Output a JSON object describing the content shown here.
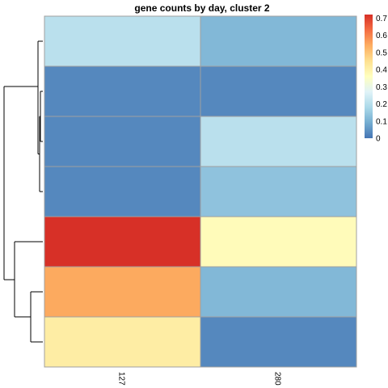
{
  "chart_data": {
    "type": "heatmap",
    "title": "gene counts by day, cluster 2",
    "columns": [
      "127",
      "280"
    ],
    "row_count": 7,
    "values": [
      [
        0.2,
        0.11
      ],
      [
        0.03,
        0.03
      ],
      [
        0.03,
        0.2
      ],
      [
        0.03,
        0.13
      ],
      [
        0.72,
        0.36
      ],
      [
        0.53,
        0.11
      ],
      [
        0.4,
        0.03
      ]
    ],
    "color_scale": {
      "min": 0,
      "max": 0.7,
      "colors": [
        "#4575b4",
        "#74add1",
        "#abd9e9",
        "#e0f3f8",
        "#ffffbf",
        "#fee090",
        "#fdae61",
        "#f46d43",
        "#d73027"
      ],
      "ticks": [
        "0",
        "0.1",
        "0.2",
        "0.3",
        "0.4",
        "0.5",
        "0.6",
        "0.7"
      ]
    },
    "row_dendrogram": true,
    "grid_color": "#a0a0a0",
    "legend_position": "right"
  }
}
